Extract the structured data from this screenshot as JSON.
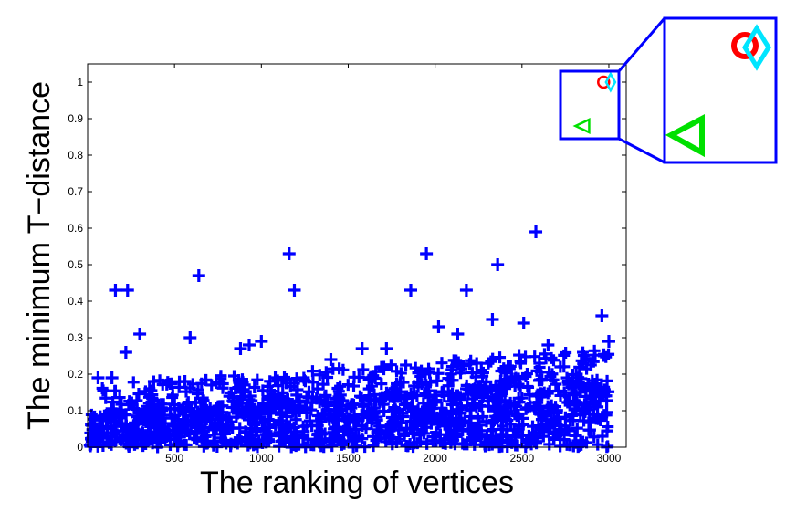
{
  "chart_data": {
    "type": "scatter",
    "xlabel": "The ranking of vertices",
    "ylabel": "The minimum T−distance",
    "xlim": [
      0,
      3100
    ],
    "ylim": [
      0,
      1.05
    ],
    "xticks": [
      500,
      1000,
      1500,
      2000,
      2500,
      3000
    ],
    "yticks": [
      0,
      0.1,
      0.2,
      0.3,
      0.4,
      0.5,
      0.6,
      0.7,
      0.8,
      0.9,
      1
    ],
    "xtick_labels": [
      "500",
      "1000",
      "1500",
      "2000",
      "2500",
      "3000"
    ],
    "ytick_labels": [
      "0",
      "0.1",
      "0.2",
      "0.3",
      "0.4",
      "0.5",
      "0.6",
      "0.7",
      "0.8",
      "0.9",
      "1"
    ],
    "grid": false,
    "legend": "none",
    "inset": "top-right, magnifies the region near (3000, 0.85–1.0)",
    "series": [
      {
        "marker": "plus",
        "color": "#0000ff",
        "description": "dense cloud of ~3000 vertices, mostly 0–0.2",
        "outliers": [
          {
            "x": 160,
            "y": 0.43
          },
          {
            "x": 230,
            "y": 0.43
          },
          {
            "x": 300,
            "y": 0.31
          },
          {
            "x": 220,
            "y": 0.26
          },
          {
            "x": 60,
            "y": 0.19
          },
          {
            "x": 140,
            "y": 0.19
          },
          {
            "x": 640,
            "y": 0.47
          },
          {
            "x": 590,
            "y": 0.3
          },
          {
            "x": 560,
            "y": 0.18
          },
          {
            "x": 880,
            "y": 0.27
          },
          {
            "x": 930,
            "y": 0.28
          },
          {
            "x": 1000,
            "y": 0.29
          },
          {
            "x": 1160,
            "y": 0.53
          },
          {
            "x": 1190,
            "y": 0.43
          },
          {
            "x": 1080,
            "y": 0.19
          },
          {
            "x": 1950,
            "y": 0.53
          },
          {
            "x": 1860,
            "y": 0.43
          },
          {
            "x": 2020,
            "y": 0.33
          },
          {
            "x": 2180,
            "y": 0.43
          },
          {
            "x": 2360,
            "y": 0.5
          },
          {
            "x": 2580,
            "y": 0.59
          },
          {
            "x": 2330,
            "y": 0.35
          },
          {
            "x": 2510,
            "y": 0.34
          },
          {
            "x": 2960,
            "y": 0.36
          },
          {
            "x": 3000,
            "y": 0.29
          },
          {
            "x": 2650,
            "y": 0.28
          },
          {
            "x": 1720,
            "y": 0.27
          },
          {
            "x": 1580,
            "y": 0.27
          },
          {
            "x": 1400,
            "y": 0.24
          },
          {
            "x": 2130,
            "y": 0.31
          }
        ]
      },
      {
        "marker": "circle",
        "color": "#ff0000",
        "points": [
          {
            "x": 2970,
            "y": 1.0
          }
        ]
      },
      {
        "marker": "diamond",
        "color": "#00e5ff",
        "points": [
          {
            "x": 3010,
            "y": 1.0
          }
        ]
      },
      {
        "marker": "triangle",
        "color": "#00e000",
        "points": [
          {
            "x": 2850,
            "y": 0.88
          }
        ]
      }
    ]
  }
}
